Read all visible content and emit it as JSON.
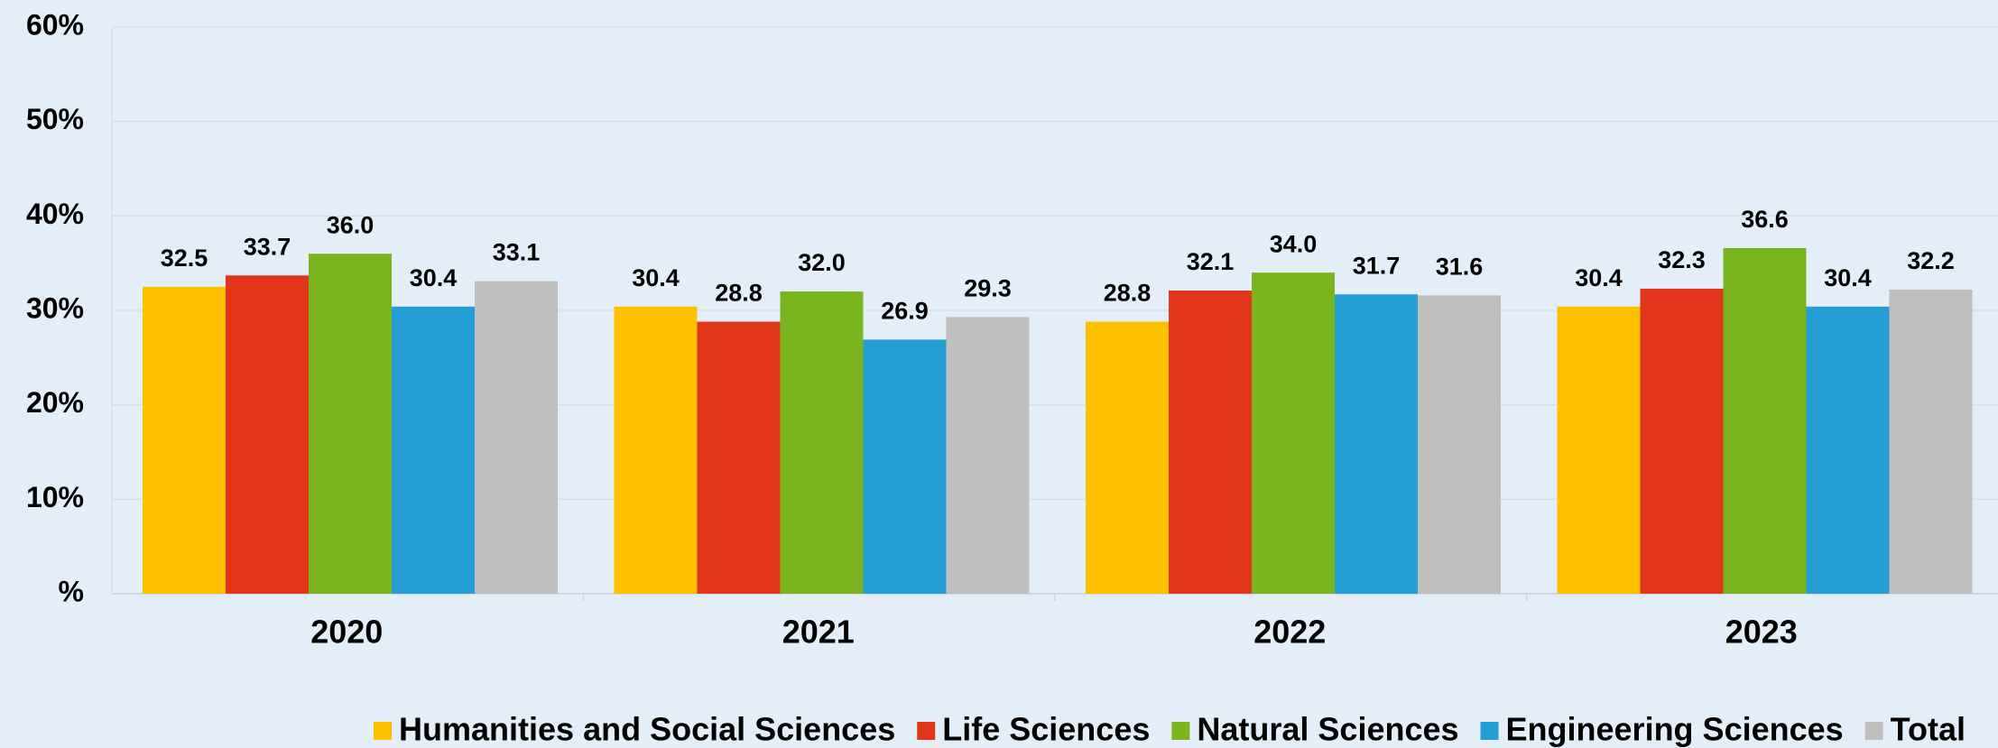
{
  "chart_data": {
    "type": "bar",
    "categories": [
      "2020",
      "2021",
      "2022",
      "2023"
    ],
    "series": [
      {
        "name": "Humanities and Social Sciences",
        "color": "#FFC000",
        "values": [
          32.5,
          30.4,
          28.8,
          30.4
        ],
        "value_labels": [
          "32.5",
          "30.4",
          "28.8",
          "30.4"
        ]
      },
      {
        "name": "Life Sciences",
        "color": "#E2361B",
        "values": [
          33.7,
          28.8,
          32.1,
          32.3
        ],
        "value_labels": [
          "33.7",
          "28.8",
          "32.1",
          "32.3"
        ]
      },
      {
        "name": "Natural Sciences",
        "color": "#7AB51F",
        "values": [
          36.0,
          32.0,
          34.0,
          36.6
        ],
        "value_labels": [
          "36.0",
          "32.0",
          "34.0",
          "36.6"
        ]
      },
      {
        "name": "Engineering Sciences",
        "color": "#259ED6",
        "values": [
          30.4,
          26.9,
          31.7,
          30.4
        ],
        "value_labels": [
          "30.4",
          "26.9",
          "31.7",
          "30.4"
        ]
      },
      {
        "name": "Total",
        "color": "#BFBFBF",
        "values": [
          33.1,
          29.3,
          31.6,
          32.2
        ],
        "value_labels": [
          "33.1",
          "29.3",
          "31.6",
          "32.2"
        ]
      }
    ],
    "ylim": [
      0,
      60
    ],
    "yticks": [
      {
        "value": 0,
        "label": "%"
      },
      {
        "value": 10,
        "label": "10%"
      },
      {
        "value": 20,
        "label": "20%"
      },
      {
        "value": 30,
        "label": "30%"
      },
      {
        "value": 40,
        "label": "40%"
      },
      {
        "value": 50,
        "label": "50%"
      },
      {
        "value": 60,
        "label": "60%"
      }
    ],
    "grid": true,
    "legend": "bottom"
  }
}
